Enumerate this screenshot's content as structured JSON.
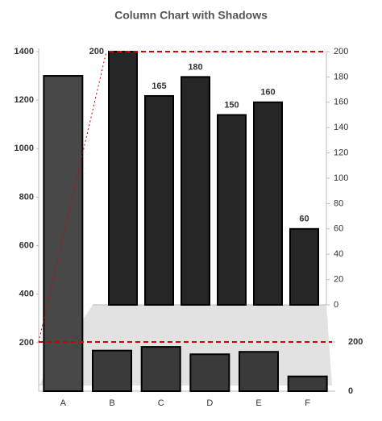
{
  "chart_data": [
    {
      "type": "bar",
      "title": "Column Chart with Shadows",
      "categories": [
        "A",
        "B",
        "C",
        "D",
        "E",
        "F"
      ],
      "series": [
        {
          "color": "#484848",
          "values": [
            1300,
            null,
            null,
            null,
            null,
            null
          ]
        },
        {
          "color": "#3a3a3a",
          "axis": "y2",
          "values": [
            null,
            165,
            180,
            150,
            160,
            60
          ]
        }
      ],
      "ylim": [
        0,
        1400
      ],
      "yticks": [
        200,
        400,
        600,
        800,
        1000,
        1200,
        1400
      ],
      "y2lim": [
        0,
        200
      ],
      "y2ticks": [
        0,
        200
      ],
      "reference_line": {
        "value": 200,
        "color": "#d00000"
      }
    },
    {
      "type": "bar",
      "values": [
        200,
        165,
        180,
        150,
        160,
        60
      ],
      "color": "#262626",
      "ylim": [
        0,
        200
      ],
      "yticks": [
        0,
        20,
        40,
        60,
        80,
        100,
        120,
        140,
        160,
        180,
        200
      ],
      "reference_line": {
        "value": 200,
        "color": "#d00000"
      }
    }
  ]
}
